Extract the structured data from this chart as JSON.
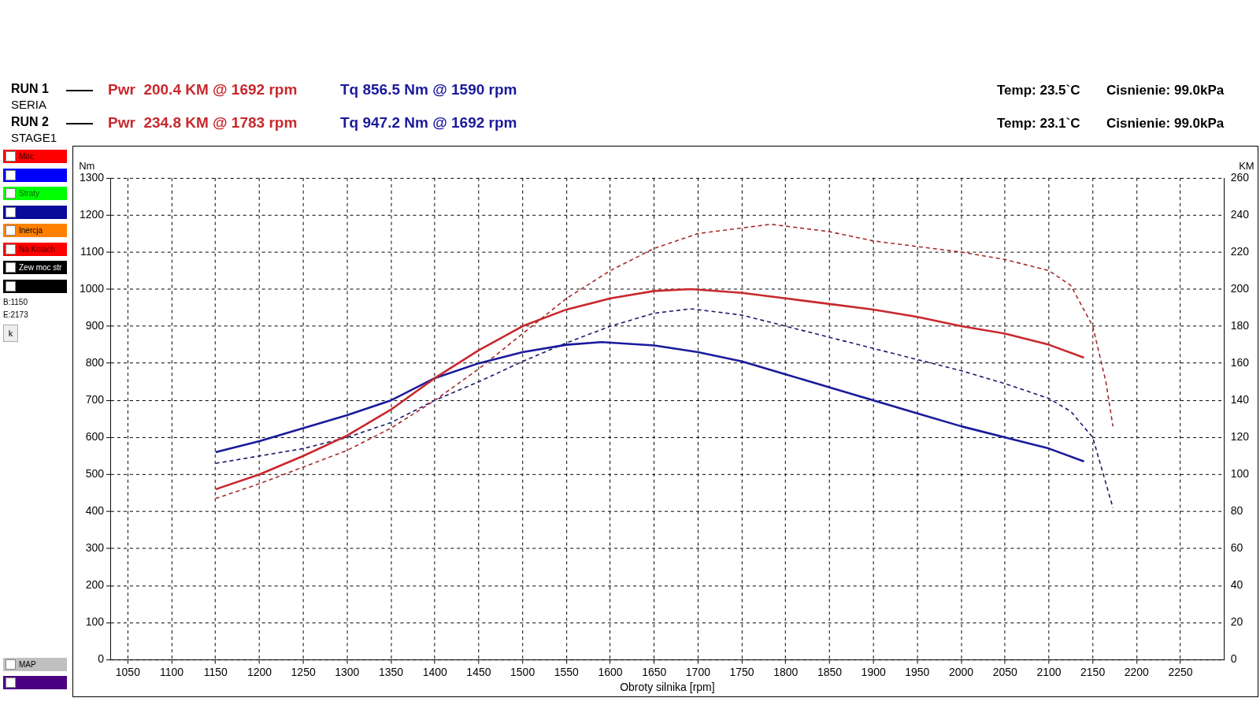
{
  "chart_data": {
    "type": "line",
    "xlabel": "Obroty silnika [rpm]",
    "ylabel": "Nm",
    "y2label": "KM",
    "xlim": [
      1030,
      2300
    ],
    "xticks": [
      1050,
      1100,
      1150,
      1200,
      1250,
      1300,
      1350,
      1400,
      1450,
      1500,
      1550,
      1600,
      1650,
      1700,
      1750,
      1800,
      1850,
      1900,
      1950,
      2000,
      2050,
      2100,
      2150,
      2200,
      2250
    ],
    "ylim": [
      0,
      1300
    ],
    "yticks": [
      0,
      100,
      200,
      300,
      400,
      500,
      600,
      700,
      800,
      900,
      1000,
      1100,
      1200,
      1300
    ],
    "y2lim": [
      0,
      260
    ],
    "y2ticks": [
      0,
      20,
      40,
      60,
      80,
      100,
      120,
      140,
      160,
      180,
      200,
      220,
      240,
      260
    ],
    "grid": true,
    "legend": false,
    "marker": "none",
    "series": [
      {
        "color": "#c8282d",
        "axis": "y2",
        "line_style": "solid",
        "x": [
          1150,
          1200,
          1250,
          1300,
          1350,
          1400,
          1450,
          1500,
          1550,
          1600,
          1650,
          1692,
          1750,
          1800,
          1850,
          1900,
          1950,
          2000,
          2050,
          2100,
          2140
        ],
        "values": [
          92,
          100,
          110,
          121,
          135,
          152,
          167,
          180,
          189,
          195,
          199,
          200,
          198,
          195,
          192,
          189,
          185,
          180,
          176,
          170,
          163
        ]
      },
      {
        "color": "#1a1a9c",
        "axis": "y",
        "line_style": "solid",
        "x": [
          1150,
          1200,
          1250,
          1300,
          1350,
          1400,
          1450,
          1500,
          1550,
          1590,
          1650,
          1700,
          1750,
          1800,
          1850,
          1900,
          1950,
          2000,
          2050,
          2100,
          2140
        ],
        "values": [
          560,
          590,
          625,
          660,
          700,
          760,
          800,
          830,
          850,
          857,
          848,
          830,
          805,
          770,
          735,
          700,
          665,
          630,
          600,
          570,
          535
        ]
      },
      {
        "color": "#a52a2a",
        "axis": "y2",
        "line_style": "dashed",
        "x": [
          1150,
          1200,
          1250,
          1300,
          1350,
          1400,
          1450,
          1500,
          1550,
          1600,
          1650,
          1700,
          1783,
          1850,
          1900,
          1950,
          2000,
          2050,
          2100,
          2125,
          2150,
          2165,
          2173
        ],
        "values": [
          87,
          95,
          104,
          113,
          125,
          140,
          157,
          176,
          195,
          210,
          222,
          230,
          235,
          231,
          226,
          223,
          220,
          216,
          210,
          202,
          180,
          150,
          126
        ]
      },
      {
        "color": "#1a1a6e",
        "axis": "y",
        "line_style": "dashed",
        "x": [
          1150,
          1200,
          1250,
          1300,
          1350,
          1400,
          1450,
          1500,
          1550,
          1600,
          1650,
          1692,
          1750,
          1800,
          1850,
          1900,
          1950,
          2000,
          2050,
          2100,
          2125,
          2150,
          2173
        ],
        "values": [
          530,
          550,
          570,
          600,
          640,
          700,
          750,
          805,
          855,
          900,
          935,
          947,
          930,
          900,
          870,
          840,
          810,
          780,
          745,
          705,
          670,
          600,
          410
        ]
      }
    ],
    "annotations": [
      "RUN 1",
      "SERIA",
      "Pwr  200.4 KM @ 1692 rpm",
      "Tq 856.5 Nm @ 1590 rpm",
      "Temp: 23.5`C",
      "Cisnienie: 99.0kPa",
      "RUN 2",
      "STAGE1",
      "Pwr  234.8 KM @ 1783 rpm",
      "Tq 947.2 Nm @ 1692 rpm",
      "Temp: 23.1`C",
      "Cisnienie: 99.0kPa",
      "Moc",
      "Straty",
      "Inercja",
      "Na Kolach",
      "Zew moc str",
      "B:1150",
      "E:2173",
      "k",
      "MAP"
    ]
  }
}
